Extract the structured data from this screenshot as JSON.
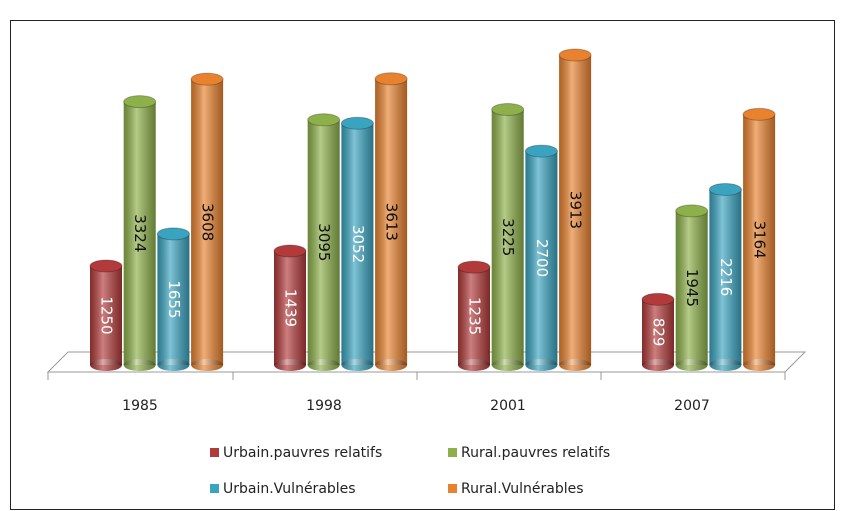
{
  "chart_data": {
    "type": "bar3d",
    "categories": [
      "1985",
      "1998",
      "2001",
      "2007"
    ],
    "series": [
      {
        "name": "Urbain.pauvres relatifs",
        "color": "#b23a3a",
        "values": [
          1250,
          1439,
          1235,
          829
        ]
      },
      {
        "name": "Rural.pauvres relatifs",
        "color": "#8db04a",
        "values": [
          3324,
          3095,
          3225,
          1945
        ]
      },
      {
        "name": "Urbain.Vulnérables",
        "color": "#3aa3bf",
        "values": [
          1655,
          3052,
          2700,
          2216
        ]
      },
      {
        "name": "Rural.Vulnérables",
        "color": "#e8822f",
        "values": [
          3608,
          3613,
          3913,
          3164
        ]
      }
    ]
  }
}
